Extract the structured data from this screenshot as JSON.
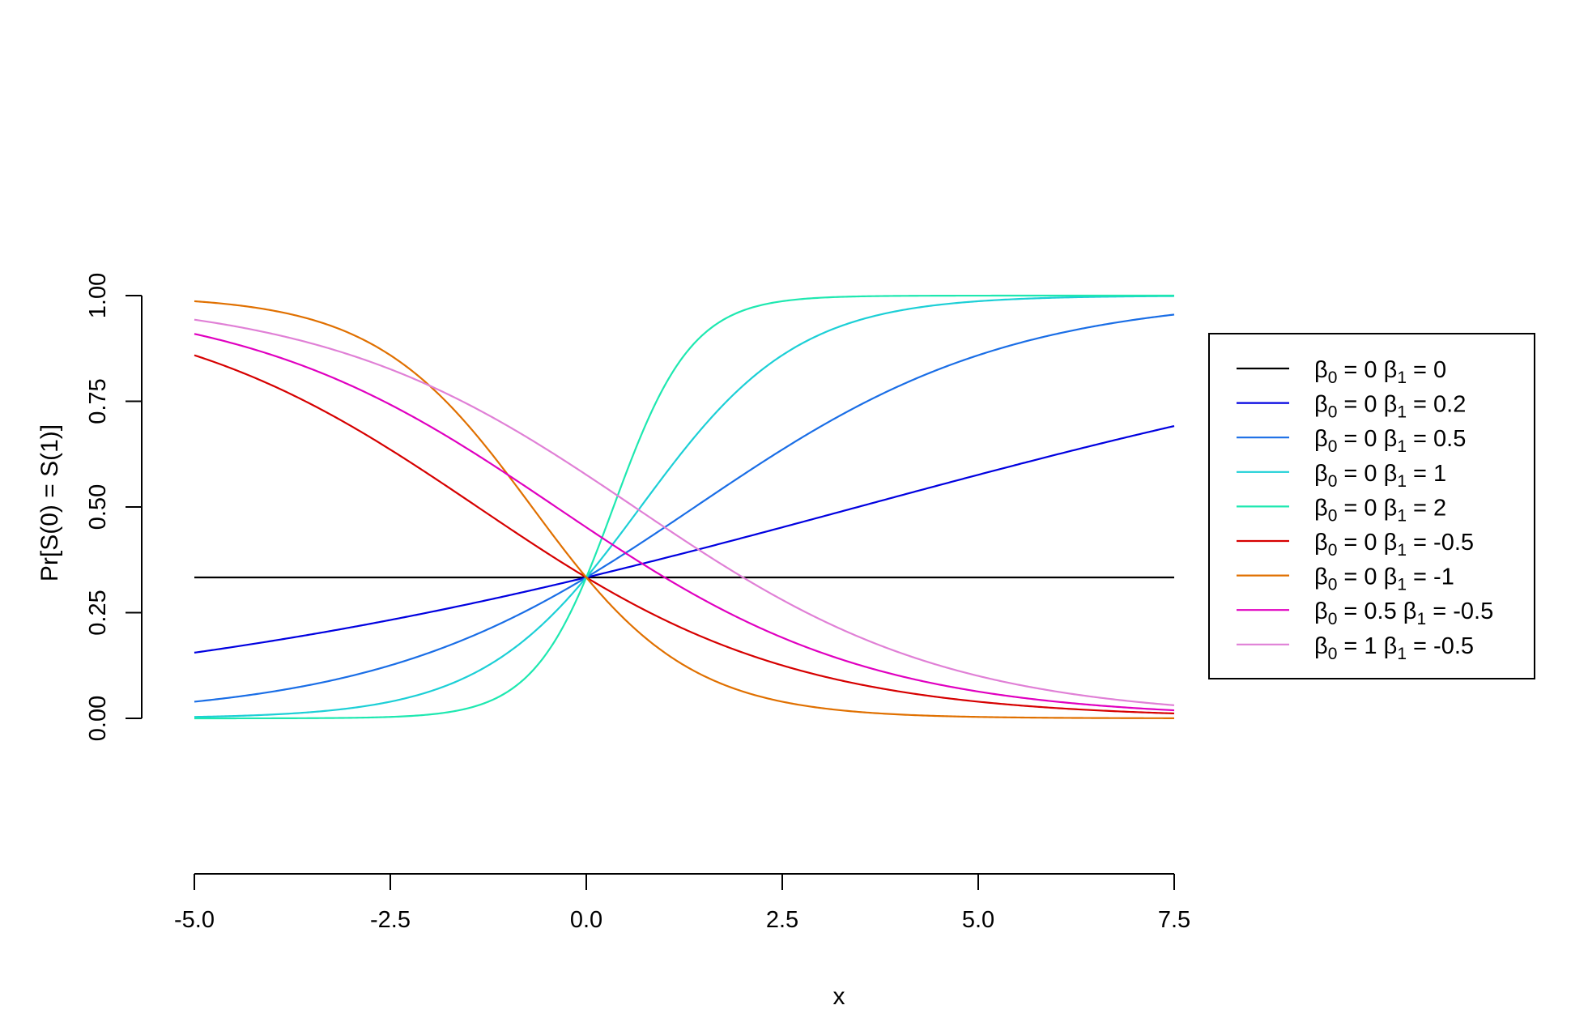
{
  "chart_data": {
    "type": "line",
    "xlabel": "x",
    "ylabel": "Pr[S(0) = S(1)]",
    "xlim": [
      -5,
      7.5
    ],
    "ylim": [
      0,
      1
    ],
    "x_ticks": [
      -5,
      -2.5,
      0,
      2.5,
      5,
      7.5
    ],
    "x_tick_labels": [
      "-5.0",
      "-2.5",
      "0.0",
      "2.5",
      "5.0",
      "7.5"
    ],
    "y_ticks": [
      0,
      0.25,
      0.5,
      0.75,
      1
    ],
    "y_tick_labels": [
      "0.00",
      "0.25",
      "0.50",
      "0.75",
      "1.00"
    ],
    "grid": false,
    "legend_position": "right",
    "legend_box": true,
    "series": [
      {
        "beta0": "0",
        "beta1": "0",
        "color": "#000000"
      },
      {
        "beta0": "0",
        "beta1": "0.2",
        "color": "#0000e0"
      },
      {
        "beta0": "0",
        "beta1": "0.5",
        "color": "#1a6ee6"
      },
      {
        "beta0": "0",
        "beta1": "1",
        "color": "#1ccfd6"
      },
      {
        "beta0": "0",
        "beta1": "2",
        "color": "#1ee8b0"
      },
      {
        "beta0": "0",
        "beta1": "-0.5",
        "color": "#d60000"
      },
      {
        "beta0": "0",
        "beta1": "-1",
        "color": "#e07000"
      },
      {
        "beta0": "0.5",
        "beta1": "-0.5",
        "color": "#e000c0"
      },
      {
        "beta0": "1",
        "beta1": "-0.5",
        "color": "#e080d6"
      }
    ],
    "legend_symbols": {
      "beta": "β",
      "eq": "=",
      "sub0": "0",
      "sub1": "1"
    }
  }
}
